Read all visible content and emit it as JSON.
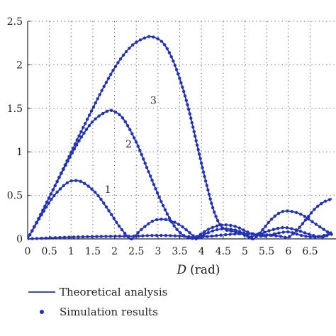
{
  "chart_data": {
    "type": "line",
    "xlabel_var": "D",
    "xlabel_unit": "(rad)",
    "ylabel": "",
    "xlim": [
      0,
      7.0
    ],
    "ylim": [
      0,
      2.5
    ],
    "x_ticks": [
      "0",
      "0.5",
      "1",
      "1.5",
      "2",
      "2.5",
      "3",
      "3.5",
      "4",
      "4.5",
      "5",
      "5.5",
      "6",
      "6.5"
    ],
    "y_ticks": [
      "0",
      "0.5",
      "1",
      "1.5",
      "2",
      "2.5"
    ],
    "grid": "dotted",
    "line_color": "#2232b8",
    "series": [
      {
        "curve_label": "1",
        "label_at": [
          1.12,
          0.53
        ],
        "x": [
          0,
          0.3,
          0.6,
          0.9,
          1.1,
          1.3,
          1.6,
          1.9,
          2.1,
          2.3,
          2.4,
          2.6,
          2.9,
          3.2,
          3.5,
          3.8,
          3.88,
          4.1,
          4.4,
          4.7,
          5.0,
          5.1,
          5.3,
          5.6,
          5.9,
          6.2,
          6.5,
          6.8,
          7.0
        ],
        "y": [
          0,
          0.26,
          0.49,
          0.64,
          0.67,
          0.64,
          0.51,
          0.3,
          0.15,
          0.03,
          0,
          0.1,
          0.21,
          0.22,
          0.16,
          0.04,
          0,
          0.06,
          0.11,
          0.11,
          0.06,
          0.02,
          0.05,
          0.1,
          0.13,
          0.1,
          0.05,
          0.02,
          0.08
        ]
      },
      {
        "curve_label": "2",
        "label_at": [
          1.6,
          1.05
        ],
        "x": [
          0,
          0.3,
          0.6,
          0.9,
          1.2,
          1.5,
          1.8,
          1.96,
          2.2,
          2.5,
          2.8,
          3.1,
          3.4,
          3.7,
          3.9,
          4.2,
          4.5,
          4.8,
          5.1,
          5.4,
          5.7,
          6.0,
          6.3,
          6.6,
          6.9,
          7.0
        ],
        "y": [
          0,
          0.28,
          0.58,
          0.87,
          1.14,
          1.35,
          1.46,
          1.47,
          1.38,
          1.11,
          0.75,
          0.4,
          0.13,
          0.01,
          0.03,
          0.12,
          0.16,
          0.14,
          0.07,
          0.03,
          0.06,
          0.08,
          0.04,
          0.02,
          0.05,
          0.07
        ]
      },
      {
        "curve_label": "3",
        "label_at": [
          2.17,
          1.55
        ],
        "x": [
          0,
          0.3,
          0.6,
          0.9,
          1.2,
          1.5,
          1.8,
          2.1,
          2.4,
          2.7,
          2.88,
          3.1,
          3.3,
          3.5,
          3.7,
          3.9,
          4.1,
          4.3,
          4.5,
          4.8,
          5.1,
          5.2,
          5.4,
          5.6,
          5.8,
          6.0,
          6.3,
          6.6,
          6.9,
          7.0
        ],
        "y": [
          0,
          0.28,
          0.58,
          0.89,
          1.2,
          1.5,
          1.79,
          2.04,
          2.22,
          2.31,
          2.32,
          2.26,
          2.1,
          1.84,
          1.5,
          1.08,
          0.66,
          0.3,
          0.12,
          0.08,
          0.02,
          0,
          0.1,
          0.22,
          0.3,
          0.32,
          0.28,
          0.18,
          0.08,
          0.05
        ]
      },
      {
        "curve_label": "",
        "label_at": null,
        "x": [
          0,
          1.0,
          2.0,
          2.4,
          3.0,
          3.6,
          3.85,
          4.2,
          4.6,
          5.0,
          5.4,
          5.8,
          6.0,
          6.2,
          6.4,
          6.6,
          6.8,
          7.0
        ],
        "y": [
          0,
          0.02,
          0.03,
          0.03,
          0.04,
          0.03,
          0.02,
          0.03,
          0.05,
          0.06,
          0.05,
          0.03,
          0.02,
          0.1,
          0.22,
          0.34,
          0.42,
          0.46
        ]
      }
    ],
    "legend": {
      "line_label": "Theoretical analysis",
      "marker_label": "Simulation results"
    }
  }
}
